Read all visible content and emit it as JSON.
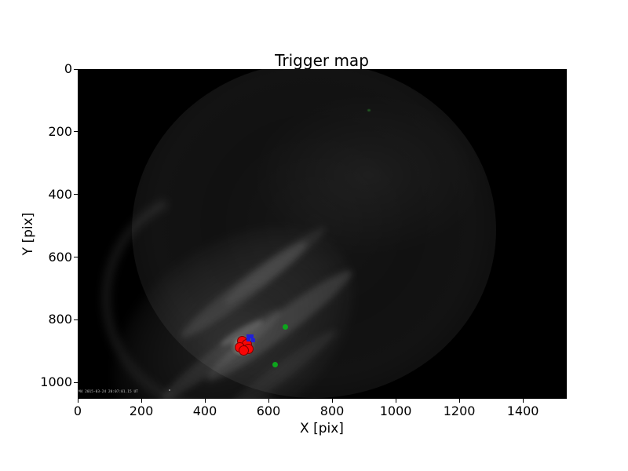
{
  "chart_data": {
    "type": "scatter",
    "title": "Trigger map",
    "xlabel": "X [pix]",
    "ylabel": "Y [pix]",
    "xlim": [
      0,
      1538
    ],
    "ylim": [
      1052,
      0
    ],
    "xticks": [
      0,
      200,
      400,
      600,
      800,
      1000,
      1200,
      1400
    ],
    "yticks": [
      0,
      200,
      400,
      600,
      800,
      1000
    ],
    "grid": false,
    "legend_position": "none",
    "background": "dark all-sky camera frame: faint gray fisheye disk, wispy clouds and bright patch in lower-left quadrant",
    "timestamp_overlay": "M4 2015-03-24 20:07:01.15 UT",
    "series": [
      {
        "name": "trigger-red-circles",
        "marker": "circle",
        "color": "#f90505",
        "edge_color": "#7a0000",
        "size": 13,
        "points": [
          [
            516,
            867
          ],
          [
            533,
            877
          ],
          [
            511,
            887
          ],
          [
            536,
            892
          ],
          [
            523,
            899
          ]
        ]
      },
      {
        "name": "match-blue-squares",
        "marker": "square",
        "color": "#2121d6",
        "edge_color": null,
        "size": 5,
        "points": [
          [
            536,
            852
          ],
          [
            548,
            852
          ],
          [
            538,
            864
          ],
          [
            551,
            866
          ]
        ]
      },
      {
        "name": "star-green-dots",
        "marker": "circle",
        "color": "#0da51c",
        "edge_color": null,
        "size": 7,
        "points": [
          [
            652,
            824
          ],
          [
            620,
            944
          ]
        ]
      }
    ]
  }
}
